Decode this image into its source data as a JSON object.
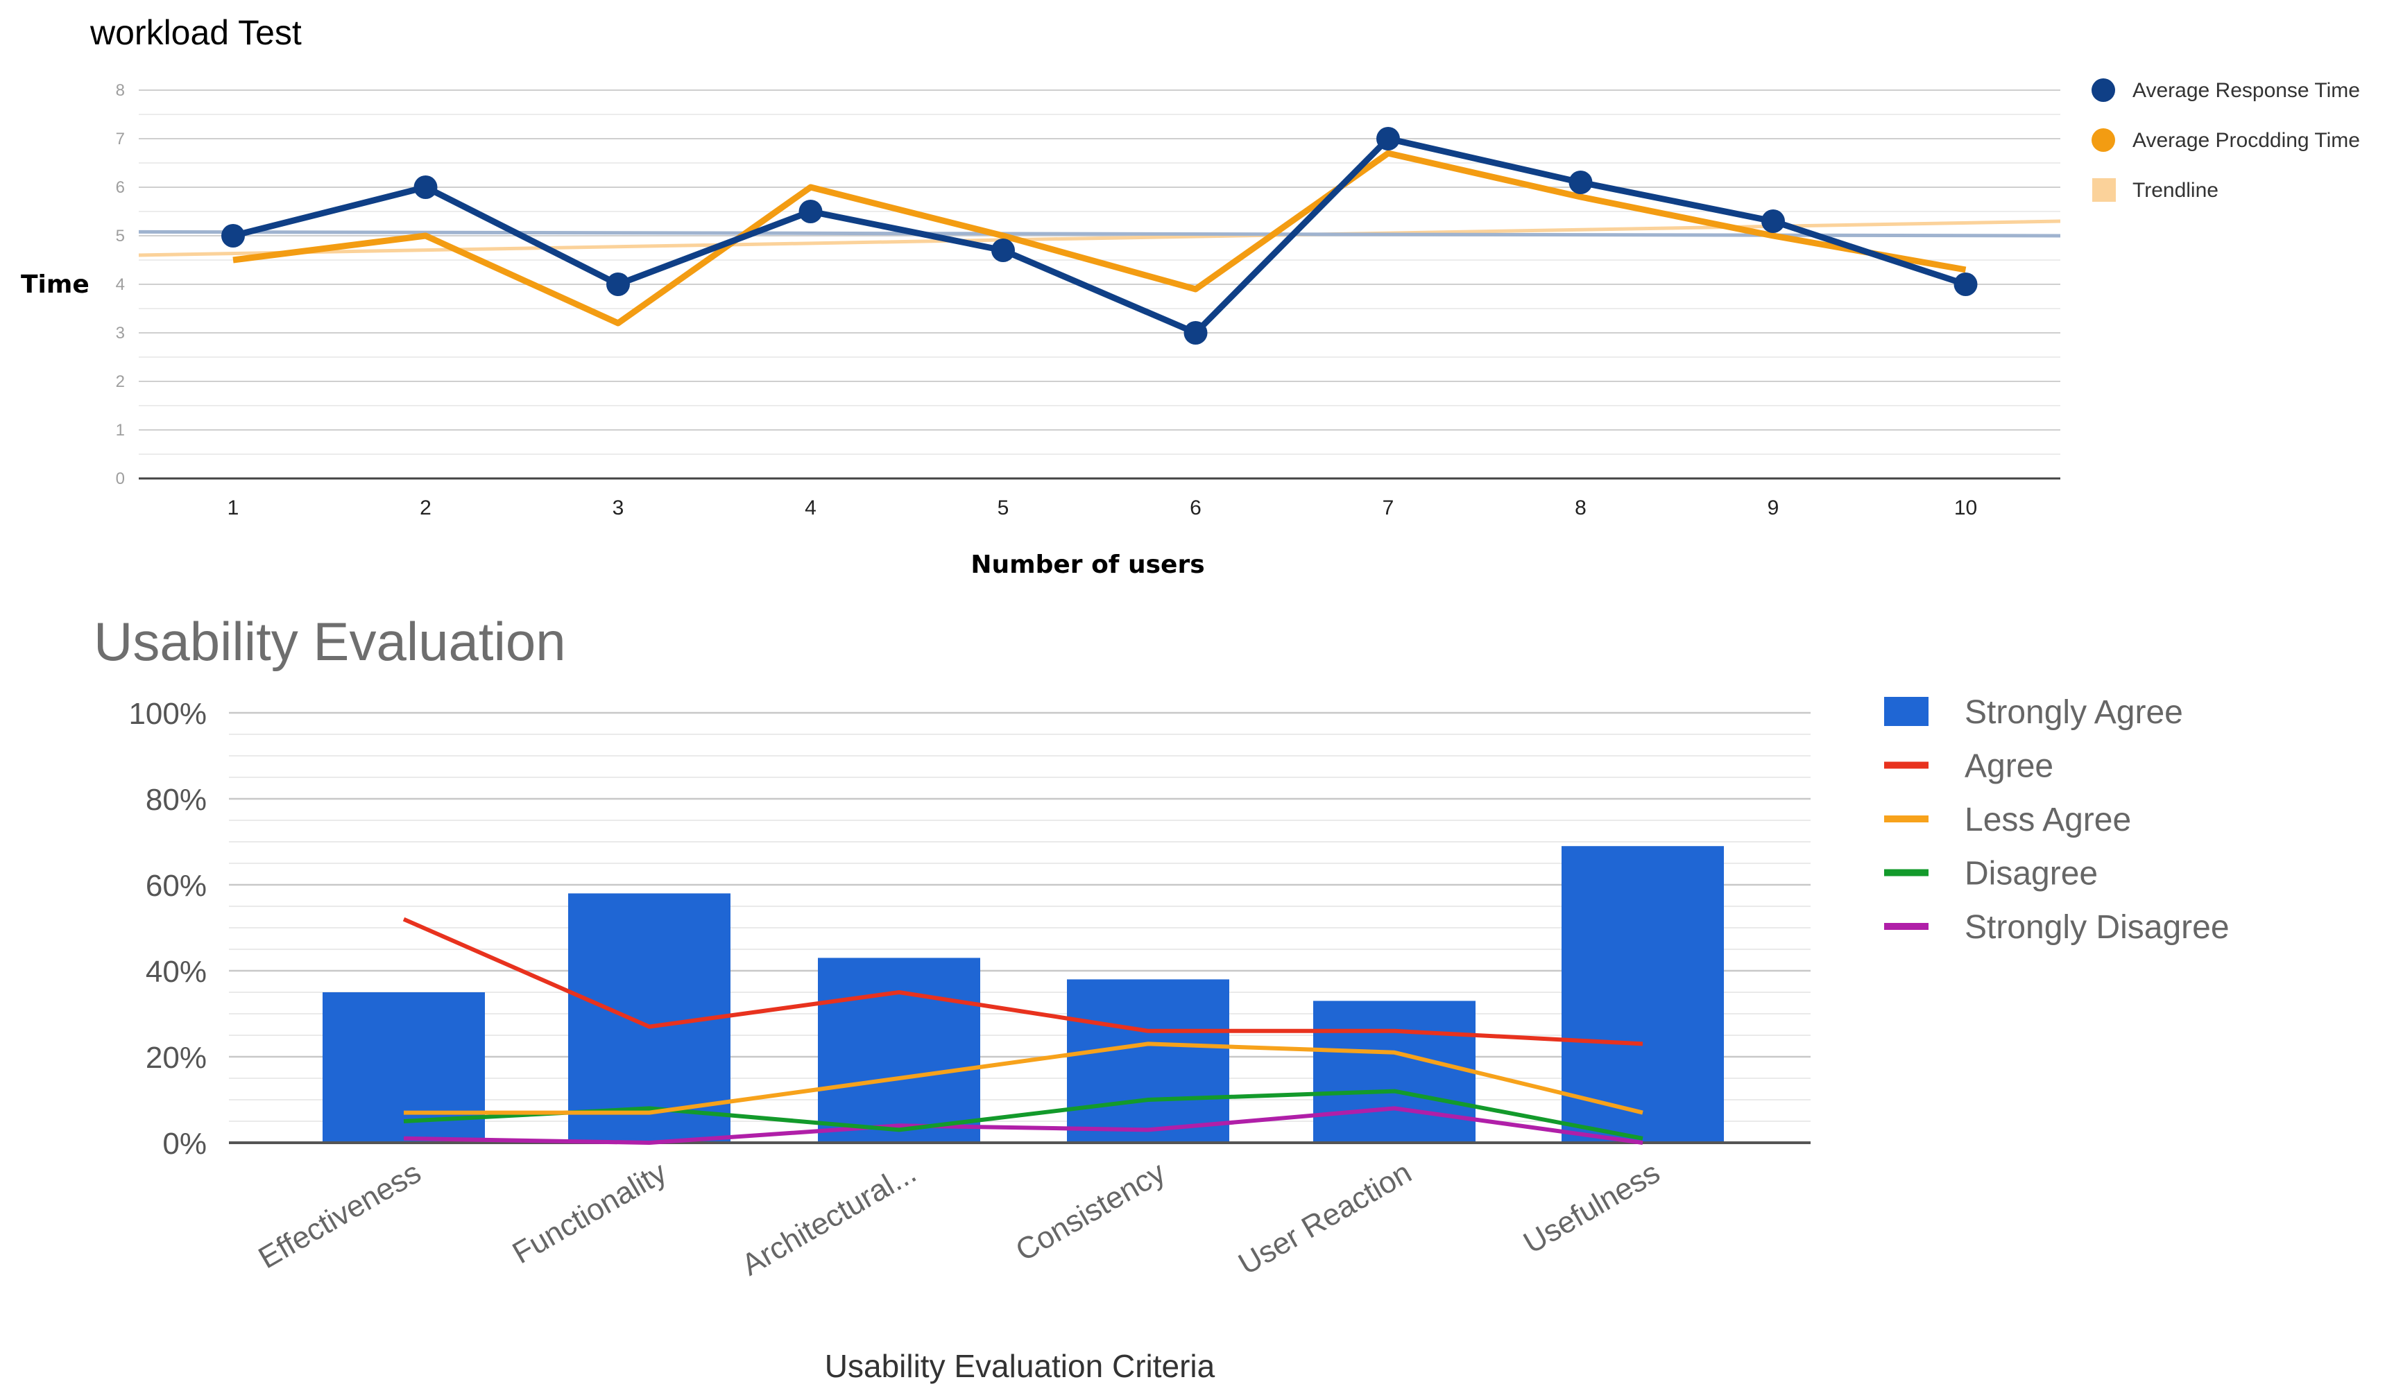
{
  "chart_data": [
    {
      "type": "line",
      "title": "workload Test",
      "xlabel": "Number of users",
      "ylabel": "Time",
      "categories": [
        "1",
        "2",
        "3",
        "4",
        "5",
        "6",
        "7",
        "8",
        "9",
        "10"
      ],
      "ylim": [
        0,
        8
      ],
      "yticks": [
        "0",
        "1",
        "2",
        "3",
        "4",
        "5",
        "6",
        "7",
        "8"
      ],
      "series": [
        {
          "name": "Average Response Time",
          "color": "#0f3f86",
          "values": [
            5,
            6,
            4,
            5.5,
            4.7,
            3,
            7,
            6.1,
            5.3,
            4
          ]
        },
        {
          "name": "Average Procdding Time",
          "color": "#f39c12",
          "values": [
            4.5,
            5,
            3.2,
            6,
            5,
            3.9,
            6.7,
            5.8,
            5,
            4.3
          ]
        }
      ],
      "trendlines": [
        {
          "name": "Trendline",
          "color": "#fbd29a",
          "values": [
            4.6,
            5.3
          ]
        },
        {
          "color": "#9fb3cf",
          "values": [
            5.08,
            5.0
          ]
        }
      ],
      "legend": [
        {
          "label": "Average Response Time",
          "color": "#0f3f86",
          "marker": "circle"
        },
        {
          "label": "Average Procdding Time",
          "color": "#f39c12",
          "marker": "circle"
        },
        {
          "label": "Trendline",
          "color": "#fbd29a",
          "marker": "square"
        }
      ],
      "grid": true,
      "legend_position": "right"
    },
    {
      "type": "bar",
      "title": "Usability Evaluation",
      "xlabel": "Usability Evaluation Criteria",
      "ylabel": "",
      "categories": [
        "Effectiveness",
        "Functionality",
        "Architectural...",
        "Consistency",
        "User Reaction",
        "Usefulness"
      ],
      "ylim": [
        0,
        100
      ],
      "yticks": [
        "0%",
        "20%",
        "40%",
        "60%",
        "80%",
        "100%"
      ],
      "series": [
        {
          "name": "Strongly Agree",
          "kind": "bar",
          "color": "#1f66d4",
          "values": [
            35,
            58,
            43,
            38,
            33,
            69
          ]
        },
        {
          "name": "Agree",
          "kind": "line",
          "color": "#e8321e",
          "values": [
            52,
            27,
            35,
            26,
            26,
            23
          ]
        },
        {
          "name": "Less Agree",
          "kind": "line",
          "color": "#f7a21b",
          "values": [
            7,
            7,
            15,
            23,
            21,
            7
          ]
        },
        {
          "name": "Disagree",
          "kind": "line",
          "color": "#139a2b",
          "values": [
            5,
            8,
            3,
            10,
            12,
            1
          ]
        },
        {
          "name": "Strongly Disagree",
          "kind": "line",
          "color": "#b01fa8",
          "values": [
            1,
            0,
            4,
            3,
            8,
            0
          ]
        }
      ],
      "grid": true,
      "legend_position": "right"
    }
  ]
}
